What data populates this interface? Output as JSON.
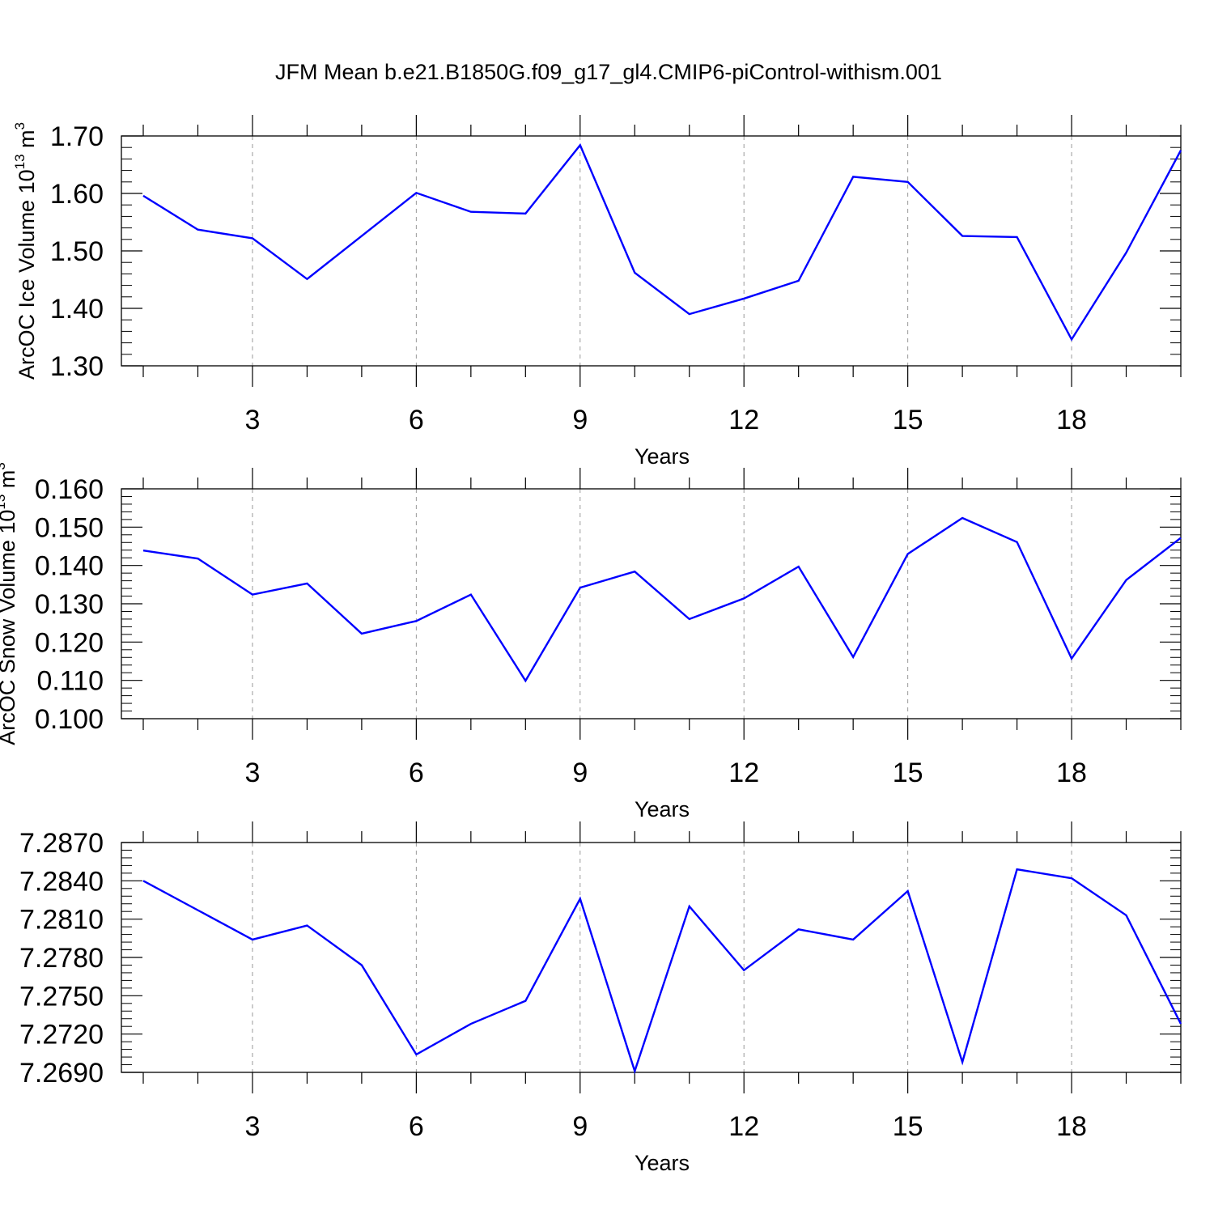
{
  "title": "JFM Mean b.e21.B1850G.f09_g17_gl4.CMIP6-piControl-withism.001",
  "colors": {
    "line": "#0000ff",
    "axis": "#000000",
    "grid": "#999999"
  },
  "chart_data": [
    {
      "type": "line",
      "xlabel": "Years",
      "ylabel_main": "ArcOC Ice Volume 10",
      "ylabel_exp": "13",
      "ylabel_unit": " m",
      "ylabel_unit_exp": "3",
      "ylim": [
        1.3,
        1.7
      ],
      "yticks": [
        "1.30",
        "1.40",
        "1.50",
        "1.60",
        "1.70"
      ],
      "xticks": [
        3,
        6,
        9,
        12,
        15,
        18
      ],
      "xlim": [
        1,
        20
      ],
      "grid": "vertical dashed at major x ticks",
      "x": [
        1,
        2,
        3,
        4,
        5,
        6,
        7,
        8,
        9,
        10,
        11,
        12,
        13,
        14,
        15,
        16,
        17,
        18,
        19,
        20
      ],
      "series": [
        {
          "values": [
            1.596,
            1.537,
            1.522,
            1.451,
            1.526,
            1.601,
            1.568,
            1.565,
            1.684,
            1.462,
            1.39,
            1.417,
            1.448,
            1.629,
            1.62,
            1.526,
            1.524,
            1.346,
            1.497,
            1.675
          ]
        }
      ]
    },
    {
      "type": "line",
      "xlabel": "Years",
      "ylabel_main": "ArcOC Snow Volume 10",
      "ylabel_exp": "13",
      "ylabel_unit": " m",
      "ylabel_unit_exp": "3",
      "ylim": [
        0.1,
        0.16
      ],
      "yticks": [
        "0.100",
        "0.110",
        "0.120",
        "0.130",
        "0.140",
        "0.150",
        "0.160"
      ],
      "xticks": [
        3,
        6,
        9,
        12,
        15,
        18
      ],
      "xlim": [
        1,
        20
      ],
      "grid": "vertical dashed at major x ticks",
      "x": [
        1,
        2,
        3,
        4,
        5,
        6,
        7,
        8,
        9,
        10,
        11,
        12,
        13,
        14,
        15,
        16,
        17,
        18,
        19,
        20
      ],
      "series": [
        {
          "values": [
            0.1439,
            0.1418,
            0.1324,
            0.1353,
            0.1222,
            0.1255,
            0.1324,
            0.1099,
            0.1342,
            0.1384,
            0.126,
            0.1314,
            0.1397,
            0.1161,
            0.143,
            0.1524,
            0.1461,
            0.1157,
            0.1362,
            0.1472
          ]
        }
      ]
    },
    {
      "type": "line",
      "xlabel": "Years",
      "ylim": [
        7.269,
        7.287
      ],
      "yticks": [
        "7.2690",
        "7.2720",
        "7.2750",
        "7.2780",
        "7.2810",
        "7.2840",
        "7.2870"
      ],
      "xticks": [
        3,
        6,
        9,
        12,
        15,
        18
      ],
      "xlim": [
        1,
        20
      ],
      "grid": "vertical dashed at major x ticks",
      "x": [
        1,
        2,
        3,
        4,
        5,
        6,
        7,
        8,
        9,
        10,
        11,
        12,
        13,
        14,
        15,
        16,
        17,
        18,
        19,
        20
      ],
      "series": [
        {
          "values": [
            7.284,
            7.2817,
            7.2794,
            7.2805,
            7.2774,
            7.2704,
            7.2728,
            7.2746,
            7.2826,
            7.2691,
            7.282,
            7.277,
            7.2802,
            7.2794,
            7.2832,
            7.2698,
            7.2849,
            7.2842,
            7.2813,
            7.2728
          ]
        }
      ]
    }
  ]
}
